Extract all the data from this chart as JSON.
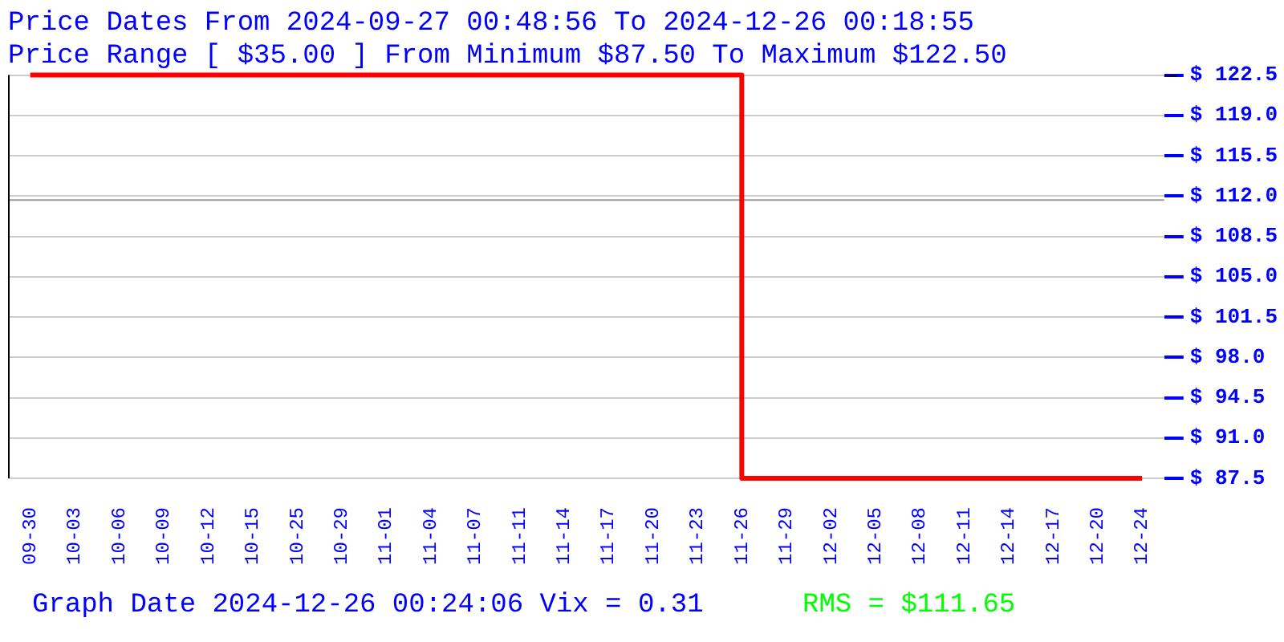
{
  "chart_data": {
    "type": "step",
    "title": [
      "Price Dates From 2024-09-27 00:48:56 To 2024-12-26 00:18:55",
      "Price Range [ $35.00 ] From Minimum $87.50 To Maximum $122.50"
    ],
    "categories": [
      "09-30",
      "10-03",
      "10-06",
      "10-09",
      "10-12",
      "10-15",
      "10-25",
      "10-29",
      "11-01",
      "11-04",
      "11-07",
      "11-11",
      "11-14",
      "11-17",
      "11-20",
      "11-23",
      "11-26",
      "11-29",
      "12-02",
      "12-05",
      "12-08",
      "12-11",
      "12-14",
      "12-17",
      "12-20",
      "12-24"
    ],
    "series": [
      {
        "color": "#ff0000",
        "values": [
          122.5,
          122.5,
          122.5,
          122.5,
          122.5,
          122.5,
          122.5,
          122.5,
          122.5,
          122.5,
          122.5,
          122.5,
          122.5,
          122.5,
          122.5,
          122.5,
          122.5,
          87.5,
          87.5,
          87.5,
          87.5,
          87.5,
          87.5,
          87.5,
          87.5,
          87.5
        ]
      }
    ],
    "ylim": [
      87.5,
      122.5
    ],
    "yticks": [
      {
        "value": 87.5,
        "label": "$ 87.5"
      },
      {
        "value": 91,
        "label": "$ 91.0"
      },
      {
        "value": 94.5,
        "label": "$ 94.5"
      },
      {
        "value": 98,
        "label": "$ 98.0"
      },
      {
        "value": 101.5,
        "label": "$ 101.5"
      },
      {
        "value": 105,
        "label": "$ 105.0"
      },
      {
        "value": 108.5,
        "label": "$ 108.5"
      },
      {
        "value": 112,
        "label": "$ 112.0"
      },
      {
        "value": 115.5,
        "label": "$ 115.5"
      },
      {
        "value": 119,
        "label": "$ 119.0"
      },
      {
        "value": 122.5,
        "label": "$ 122.5"
      }
    ],
    "ref_lines": [
      {
        "axis": "y",
        "value": 111.65,
        "color": "#999999"
      }
    ],
    "annotations": [
      "Graph Date 2024-12-26 00:24:06 Vix = 0.31",
      "RMS = $111.65"
    ],
    "grid": "y",
    "legend": false,
    "marker": "none",
    "line_style": "solid"
  }
}
